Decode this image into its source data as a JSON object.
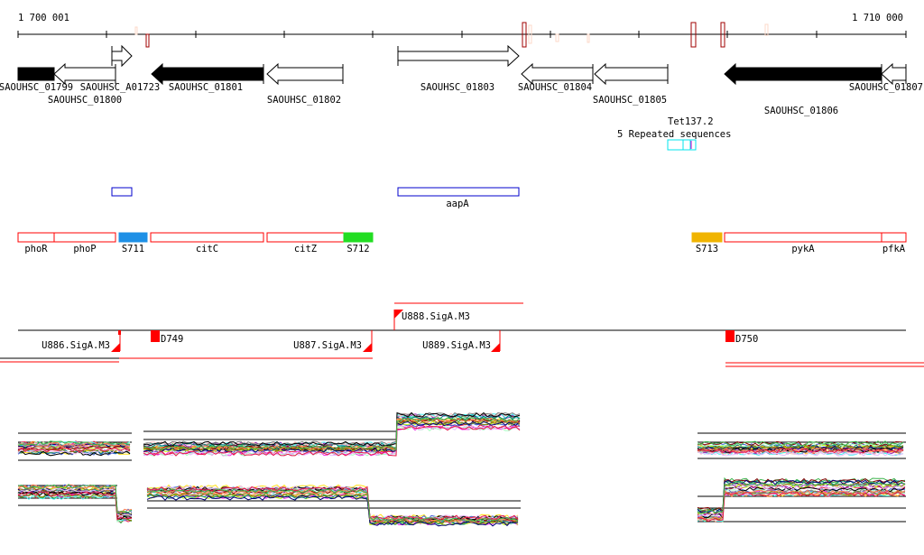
{
  "ruler": {
    "start_label": "1 700 001",
    "end_label": "1 710 000"
  },
  "genes": [
    {
      "name": "SAOUHSC_01799",
      "strand": "-",
      "filled": true
    },
    {
      "name": "SAOUHSC_01800",
      "strand": "-",
      "filled": false
    },
    {
      "name": "SAOUHSC_A01723",
      "strand": "+",
      "filled": false
    },
    {
      "name": "SAOUHSC_01801",
      "strand": "-",
      "filled": true
    },
    {
      "name": "SAOUHSC_01802",
      "strand": "-",
      "filled": false
    },
    {
      "name": "SAOUHSC_01803",
      "strand": "+",
      "filled": false
    },
    {
      "name": "SAOUHSC_01804",
      "strand": "-",
      "filled": false
    },
    {
      "name": "SAOUHSC_01805",
      "strand": "-",
      "filled": false
    },
    {
      "name": "SAOUHSC_01806",
      "strand": "-",
      "filled": true
    },
    {
      "name": "SAOUHSC_01807",
      "strand": "-",
      "filled": false
    }
  ],
  "repeats": {
    "label_a": "Tet137.2",
    "label_b": "5 Repeated sequences"
  },
  "other_features": [
    {
      "name": ""
    },
    {
      "name": "aapA"
    }
  ],
  "regions": [
    {
      "name": "phoR",
      "color": "#ffffff"
    },
    {
      "name": "phoP",
      "color": "#ffffff"
    },
    {
      "name": "S711",
      "color": "#1e90e6"
    },
    {
      "name": "citC",
      "color": "#ffffff"
    },
    {
      "name": "citZ",
      "color": "#ffffff"
    },
    {
      "name": "S712",
      "color": "#22dd22"
    },
    {
      "name": "S713",
      "color": "#f0b400"
    },
    {
      "name": "pykA",
      "color": "#ffffff"
    },
    {
      "name": "pfkA",
      "color": "#ffffff"
    }
  ],
  "promoters": [
    {
      "name": "U886.SigA.M3"
    },
    {
      "name": "D749"
    },
    {
      "name": "U887.SigA.M3"
    },
    {
      "name": "U888.SigA.M3"
    },
    {
      "name": "U889.SigA.M3"
    },
    {
      "name": "D750"
    }
  ],
  "colors": {
    "accent": "#ff0000",
    "repeat": "#00e5ee",
    "feature": "#0000cc"
  }
}
